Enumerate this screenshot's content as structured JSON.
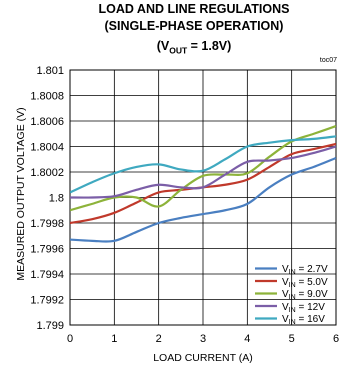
{
  "chart_data": {
    "type": "line",
    "title_line1": "LOAD AND LINE REGULATIONS",
    "title_line2": "(SINGLE-PHASE OPERATION)",
    "title_line3_prefix": "(V",
    "title_line3_sub": "OUT",
    "title_line3_suffix": " = 1.8V)",
    "tag": "toc07",
    "xlabel": "LOAD CURRENT (A)",
    "ylabel": "MEASURED OUTPUT VOLTAGE (V)",
    "xlim": [
      0,
      6
    ],
    "ylim": [
      1.799,
      1.801
    ],
    "xticks": [
      "0",
      "1",
      "2",
      "3",
      "4",
      "5",
      "6"
    ],
    "yticks": [
      "1.801",
      "1.8008",
      "1.8006",
      "1.8004",
      "1.8002",
      "1.8",
      "1.7998",
      "1.7996",
      "1.7994",
      "1.7992",
      "1.799"
    ],
    "grid": true,
    "legend_position": "bottom-right",
    "x": [
      0,
      0.5,
      1,
      1.5,
      2,
      2.5,
      3,
      3.5,
      4,
      4.5,
      5,
      5.5,
      6
    ],
    "series": [
      {
        "name_prefix": "V",
        "name_sub": "IN",
        "name_suffix": " = 2.7V",
        "color": "#4a7fc1",
        "values": [
          1.79967,
          1.79966,
          1.79966,
          1.79973,
          1.7998,
          1.79984,
          1.79987,
          1.7999,
          1.79995,
          1.80008,
          1.80018,
          1.80024,
          1.80031
        ]
      },
      {
        "name_prefix": "V",
        "name_sub": "IN",
        "name_suffix": " = 5.0V",
        "color": "#c0392b",
        "values": [
          1.7998,
          1.79983,
          1.79988,
          1.79996,
          1.80004,
          1.80006,
          1.80008,
          1.8001,
          1.80014,
          1.80024,
          1.80034,
          1.80038,
          1.80042
        ]
      },
      {
        "name_prefix": "V",
        "name_sub": "IN",
        "name_suffix": " = 9.0V",
        "color": "#8db33a",
        "values": [
          1.7999,
          1.79995,
          1.8,
          1.8,
          1.79993,
          1.80006,
          1.80017,
          1.80018,
          1.80019,
          1.80032,
          1.80044,
          1.8005,
          1.80056
        ]
      },
      {
        "name_prefix": "V",
        "name_sub": "IN",
        "name_suffix": " = 12V",
        "color": "#7b5ea7",
        "values": [
          1.8,
          1.8,
          1.80001,
          1.80006,
          1.8001,
          1.80008,
          1.80008,
          1.80018,
          1.80028,
          1.80029,
          1.80031,
          1.80035,
          1.8004
        ]
      },
      {
        "name_prefix": "V",
        "name_sub": "IN",
        "name_suffix": " = 16V",
        "color": "#3fa9c0",
        "values": [
          1.80004,
          1.80012,
          1.80019,
          1.80024,
          1.80026,
          1.80022,
          1.80021,
          1.8003,
          1.8004,
          1.80043,
          1.80045,
          1.80046,
          1.80048
        ]
      }
    ]
  }
}
